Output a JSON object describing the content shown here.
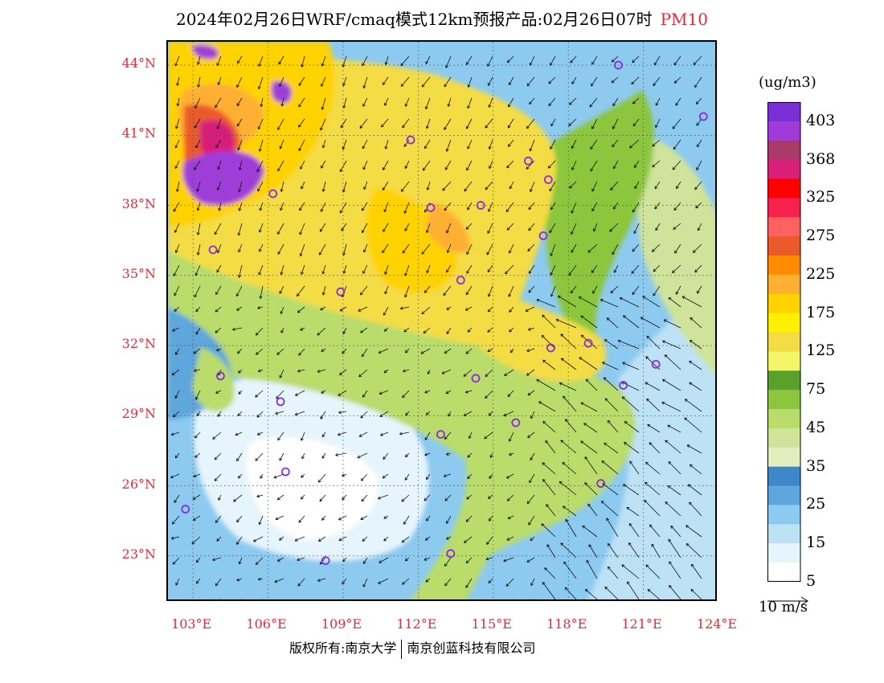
{
  "title": {
    "text": "2024年02月26日WRF/cmaq模式12km预报产品:02月26日07时",
    "product": "PM10",
    "product_color": "#e8283a"
  },
  "axes": {
    "lat_labels": [
      "44°N",
      "41°N",
      "38°N",
      "35°N",
      "32°N",
      "29°N",
      "26°N",
      "23°N"
    ],
    "lon_labels": [
      "103°E",
      "106°E",
      "109°E",
      "112°E",
      "115°E",
      "118°E",
      "121°E",
      "124°E"
    ],
    "label_color": "#e8283a"
  },
  "colorbar": {
    "unit": "(ug/m3)",
    "labels": [
      "403",
      "368",
      "325",
      "275",
      "225",
      "175",
      "125",
      "75",
      "45",
      "35",
      "25",
      "15",
      "5"
    ],
    "colors": [
      "#7b2fd6",
      "#9f3cd9",
      "#aa3a6a",
      "#d81f7a",
      "#ff0000",
      "#f5214f",
      "#ff6060",
      "#ea5a2a",
      "#ff8c00",
      "#ffb030",
      "#ffd200",
      "#ffef00",
      "#f4dc44",
      "#f5f56a",
      "#5aa02c",
      "#8cc63e",
      "#b9dc6a",
      "#cfe39a",
      "#e4edbf",
      "#3d88c8",
      "#5ea6dd",
      "#8ccaf0",
      "#bde2f6",
      "#e6f4fb",
      "#ffffff"
    ]
  },
  "map": {
    "cities": [
      {
        "lon": 111.7,
        "lat": 40.8
      },
      {
        "lon": 114.5,
        "lat": 38.0
      },
      {
        "lon": 112.5,
        "lat": 37.9
      },
      {
        "lon": 116.4,
        "lat": 39.9
      },
      {
        "lon": 117.2,
        "lat": 39.1
      },
      {
        "lon": 117.0,
        "lat": 36.7
      },
      {
        "lon": 113.7,
        "lat": 34.8
      },
      {
        "lon": 108.9,
        "lat": 34.3
      },
      {
        "lon": 106.2,
        "lat": 38.5
      },
      {
        "lon": 103.8,
        "lat": 36.1
      },
      {
        "lon": 118.8,
        "lat": 32.1
      },
      {
        "lon": 117.3,
        "lat": 31.9
      },
      {
        "lon": 114.3,
        "lat": 30.6
      },
      {
        "lon": 121.5,
        "lat": 31.2
      },
      {
        "lon": 120.2,
        "lat": 30.3
      },
      {
        "lon": 104.1,
        "lat": 30.7
      },
      {
        "lon": 106.5,
        "lat": 29.6
      },
      {
        "lon": 112.9,
        "lat": 28.2
      },
      {
        "lon": 115.9,
        "lat": 28.7
      },
      {
        "lon": 106.7,
        "lat": 26.6
      },
      {
        "lon": 119.3,
        "lat": 26.1
      },
      {
        "lon": 102.7,
        "lat": 25.0
      },
      {
        "lon": 108.3,
        "lat": 22.8
      },
      {
        "lon": 113.3,
        "lat": 23.1
      },
      {
        "lon": 123.4,
        "lat": 41.8
      },
      {
        "lon": 120.0,
        "lat": 44.0
      }
    ],
    "city_marker_color": "#8a2be2"
  },
  "wind_scale": {
    "label": "10 m/s"
  },
  "copyright": {
    "left": "版权所有:南京大学",
    "right": "南京创蓝科技有限公司"
  }
}
